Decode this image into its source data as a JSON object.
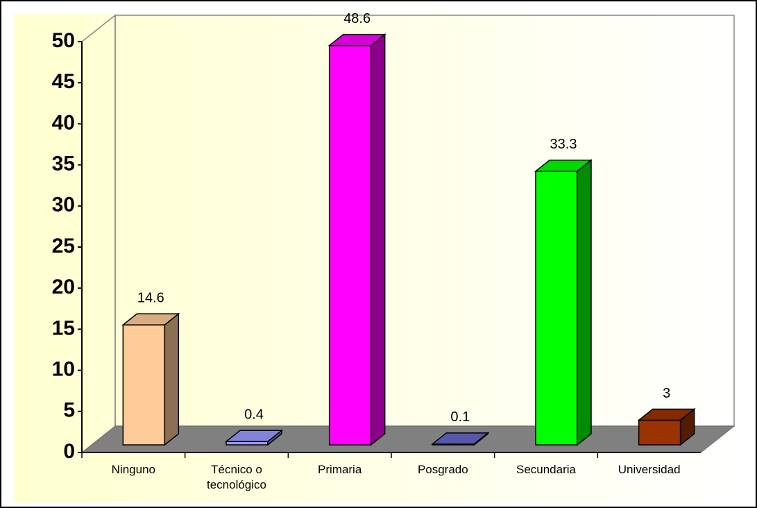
{
  "chart_data": {
    "type": "bar3d",
    "categories": [
      "Ninguno",
      "Técnico o tecnológico",
      "Primaria",
      "Posgrado",
      "Secundaria",
      "Universidad"
    ],
    "values": [
      14.6,
      0.4,
      48.6,
      0.1,
      33.3,
      3
    ],
    "colors": [
      "#ffcc99",
      "#9999ff",
      "#ff00ff",
      "#6666cc",
      "#00ff00",
      "#993300"
    ],
    "ylim": [
      0,
      50
    ],
    "yticks": [
      0,
      5,
      10,
      15,
      20,
      25,
      30,
      35,
      40,
      45,
      50
    ]
  }
}
